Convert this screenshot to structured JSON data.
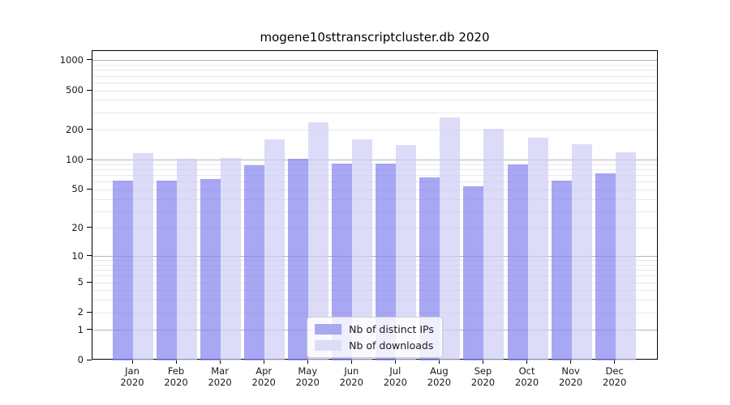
{
  "title": "mogene10sttranscriptcluster.db 2020",
  "chart_data": {
    "type": "bar",
    "title": "mogene10sttranscriptcluster.db 2020",
    "categories": [
      "Jan",
      "Feb",
      "Mar",
      "Apr",
      "May",
      "Jun",
      "Jul",
      "Aug",
      "Sep",
      "Oct",
      "Nov",
      "Dec"
    ],
    "x_sub_label": "2020",
    "series": [
      {
        "name": "Nb of distinct IPs",
        "color": "#a8a8f0",
        "fill_rgba": "rgba(130,130,238,0.70)",
        "values": [
          62,
          62,
          64,
          89,
          103,
          92,
          92,
          67,
          54,
          90,
          62,
          73
        ]
      },
      {
        "name": "Nb of downloads",
        "color": "#dcdcf8",
        "fill_rgba": "rgba(205,205,245,0.70)",
        "values": [
          118,
          103,
          106,
          161,
          241,
          163,
          143,
          268,
          209,
          168,
          144,
          120
        ]
      }
    ],
    "y_ticks": [
      0,
      1,
      2,
      5,
      10,
      20,
      50,
      100,
      200,
      500,
      1000
    ],
    "y_scale": "log1p",
    "ylim": [
      0,
      1250
    ],
    "grid": true,
    "grid_major_values": [
      1,
      10,
      100,
      1000
    ],
    "grid_major_color": "#b5b5b5",
    "grid_minor_color": "#e8e8e8",
    "legend_position": "lower center",
    "frame_color": "#000000",
    "tick_label_color": "#1a1a1a"
  }
}
